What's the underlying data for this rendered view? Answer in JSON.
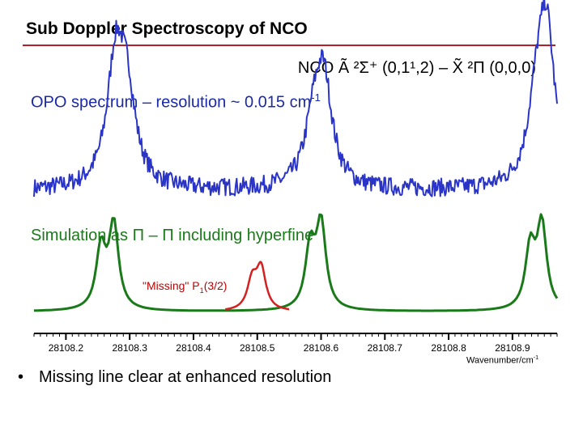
{
  "slide": {
    "title": "Sub Doppler Spectroscopy of NCO",
    "transition": "NCO Ã ²Σ⁺ (0,1¹,2) – X̃ ²Π (0,0,0)",
    "opo_label": "OPO spectrum – resolution ~ 0.015 cm",
    "opo_label_exp": "-1",
    "sim_label": "Simulation as Π – Π including hyperfine",
    "missing_label_pre": "\"Missing\" P",
    "missing_label_sub": "1",
    "missing_label_post": "(3/2)",
    "bullet": "Missing line clear at enhanced resolution",
    "colors": {
      "title_rule": "#b81e2a",
      "opo_trace": "#2a35c8",
      "simulation_trace": "#1a7a1a",
      "missing_trace": "#d42020"
    }
  },
  "chart_data": {
    "type": "line",
    "xlabel": "Wavenumber/cm",
    "xlabel_exp": "-1",
    "xlim": [
      28108.15,
      28108.97
    ],
    "xticks": [
      "28108.2",
      "28108.3",
      "28108.4",
      "28108.5",
      "28108.6",
      "28108.7",
      "28108.8",
      "28108.9"
    ],
    "xtick_values": [
      28108.2,
      28108.3,
      28108.4,
      28108.5,
      28108.6,
      28108.7,
      28108.8,
      28108.9
    ],
    "series": [
      {
        "name": "OPO spectrum",
        "trace": "opo",
        "baseline": 0.12,
        "noise": 0.06,
        "width": 0.016,
        "peaks": [
          {
            "x": 28108.278,
            "amp": 0.82
          },
          {
            "x": 28108.296,
            "amp": 0.55
          },
          {
            "x": 28108.588,
            "amp": 0.35
          },
          {
            "x": 28108.604,
            "amp": 0.7
          },
          {
            "x": 28108.937,
            "amp": 0.4
          },
          {
            "x": 28108.953,
            "amp": 1.05
          }
        ]
      },
      {
        "name": "Simulation",
        "trace": "simulation",
        "baseline": 0.0,
        "width": 0.009,
        "peaks": [
          {
            "x": 28108.255,
            "amp": 0.72
          },
          {
            "x": 28108.275,
            "amp": 1.0
          },
          {
            "x": 28108.583,
            "amp": 0.72
          },
          {
            "x": 28108.6,
            "amp": 1.0
          },
          {
            "x": 28108.928,
            "amp": 0.72
          },
          {
            "x": 28108.946,
            "amp": 1.0
          }
        ]
      },
      {
        "name": "Missing P1(3/2)",
        "trace": "missing",
        "baseline": 0.0,
        "width": 0.009,
        "range": [
          28108.45,
          28108.55
        ],
        "peaks": [
          {
            "x": 28108.492,
            "amp": 0.34
          },
          {
            "x": 28108.506,
            "amp": 0.48
          }
        ]
      }
    ]
  }
}
